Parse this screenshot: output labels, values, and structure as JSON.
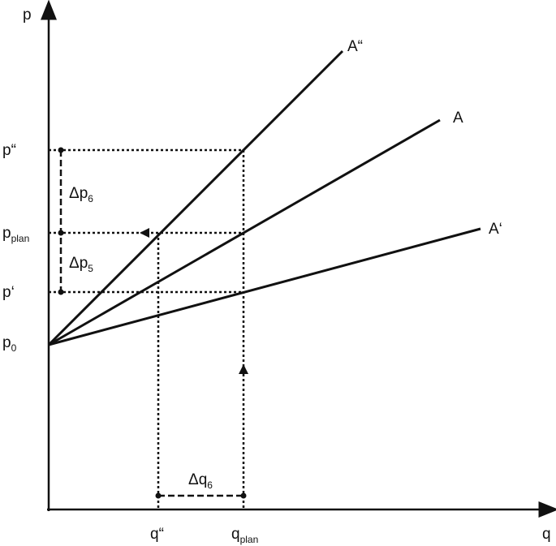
{
  "axes": {
    "y": "p",
    "x": "q"
  },
  "lines": [
    {
      "label": "A“"
    },
    {
      "label": "A"
    },
    {
      "label": "A‘"
    }
  ],
  "y_labels": [
    {
      "text": "p“"
    },
    {
      "text": "p",
      "sub": "plan"
    },
    {
      "text": "p‘"
    },
    {
      "text": "p",
      "sub": "0"
    }
  ],
  "x_labels": [
    {
      "text": "q“"
    },
    {
      "text": "q",
      "sub": "plan"
    }
  ],
  "deltas": [
    {
      "text": "Δp",
      "sub": "6"
    },
    {
      "text": "Δp",
      "sub": "5"
    },
    {
      "text": "Δq",
      "sub": "6"
    }
  ]
}
